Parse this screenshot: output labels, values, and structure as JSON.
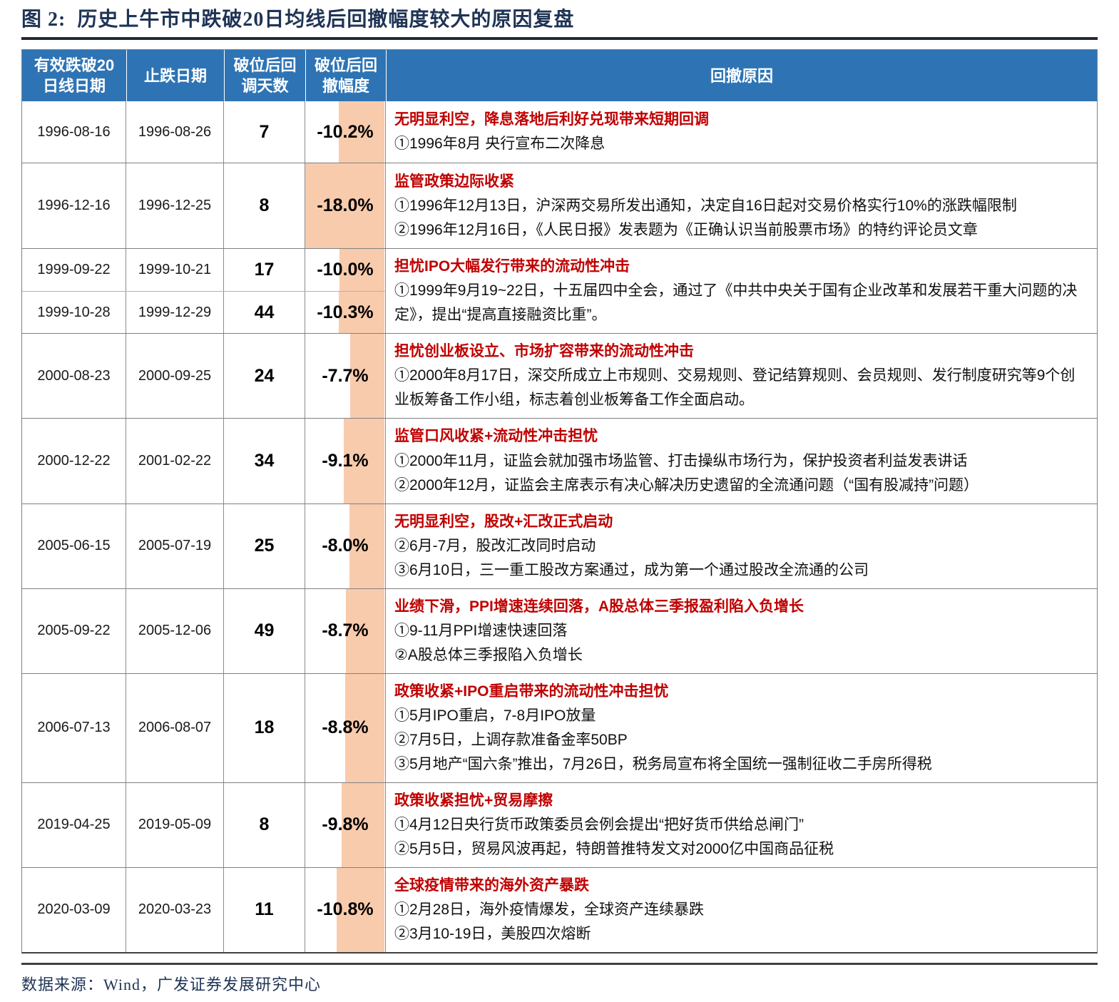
{
  "figure": {
    "title": "图 2:  历史上牛市中跌破20日均线后回撤幅度较大的原因复盘",
    "source": "数据来源：Wind，广发证券发展研究中心"
  },
  "colors": {
    "header_bg": "#2E74B5",
    "bar_fill": "#F8CBAD",
    "reason_title_red": "#C00000",
    "title_navy": "#1F3455"
  },
  "table": {
    "headers": [
      "有效跌破20\n日线日期",
      "止跌日期",
      "破位后回\n调天数",
      "破位后回\n撤幅度",
      "回撤原因"
    ],
    "drawdown_bar_scale_max": "-18.0%",
    "groups": [
      {
        "rows": [
          {
            "break_date": "1996-08-16",
            "stop_date": "1996-08-26",
            "days": "7",
            "drawdown": "-10.2%",
            "bar_width": "57%"
          }
        ],
        "reason_title": "无明显利空，降息落地后利好兑现带来短期回调",
        "details": [
          "①1996年8月 央行宣布二次降息"
        ]
      },
      {
        "rows": [
          {
            "break_date": "1996-12-16",
            "stop_date": "1996-12-25",
            "days": "8",
            "drawdown": "-18.0%",
            "bar_width": "100%"
          }
        ],
        "reason_title": "监管政策边际收紧",
        "details": [
          "①1996年12月13日，沪深两交易所发出通知，决定自16日起对交易价格实行10%的涨跌幅限制",
          "②1996年12月16日，《人民日报》发表题为《正确认识当前股票市场》的特约评论员文章"
        ]
      },
      {
        "rows": [
          {
            "break_date": "1999-09-22",
            "stop_date": "1999-10-21",
            "days": "17",
            "drawdown": "-10.0%",
            "bar_width": "56%"
          },
          {
            "break_date": "1999-10-28",
            "stop_date": "1999-12-29",
            "days": "44",
            "drawdown": "-10.3%",
            "bar_width": "57%"
          }
        ],
        "reason_title": "担忧IPO大幅发行带来的流动性冲击",
        "details": [
          "①1999年9月19~22日，十五届四中全会，通过了《中共中央关于国有企业改革和发展若干重大问题的决定》，提出“提高直接融资比重”。"
        ]
      },
      {
        "rows": [
          {
            "break_date": "2000-08-23",
            "stop_date": "2000-09-25",
            "days": "24",
            "drawdown": "-7.7%",
            "bar_width": "43%"
          }
        ],
        "reason_title": "担忧创业板设立、市场扩容带来的流动性冲击",
        "details": [
          "①2000年8月17日，深交所成立上市规则、交易规则、登记结算规则、会员规则、发行制度研究等9个创业板筹备工作小组，标志着创业板筹备工作全面启动。"
        ]
      },
      {
        "rows": [
          {
            "break_date": "2000-12-22",
            "stop_date": "2001-02-22",
            "days": "34",
            "drawdown": "-9.1%",
            "bar_width": "51%"
          }
        ],
        "reason_title": "监管口风收紧+流动性冲击担忧",
        "details": [
          "①2000年11月，证监会就加强市场监管、打击操纵市场行为，保护投资者利益发表讲话",
          "②2000年12月，证监会主席表示有决心解决历史遗留的全流通问题（“国有股减持”问题）"
        ]
      },
      {
        "rows": [
          {
            "break_date": "2005-06-15",
            "stop_date": "2005-07-19",
            "days": "25",
            "drawdown": "-8.0%",
            "bar_width": "44%"
          }
        ],
        "reason_title": "无明显利空，股改+汇改正式启动",
        "details": [
          "②6月-7月，股改汇改同时启动",
          "③6月10日，三一重工股改方案通过，成为第一个通过股改全流通的公司"
        ]
      },
      {
        "rows": [
          {
            "break_date": "2005-09-22",
            "stop_date": "2005-12-06",
            "days": "49",
            "drawdown": "-8.7%",
            "bar_width": "48%"
          }
        ],
        "reason_title": "业绩下滑，PPI增速连续回落，A股总体三季报盈利陷入负增长",
        "details": [
          "①9-11月PPI增速快速回落",
          "②A股总体三季报陷入负增长"
        ]
      },
      {
        "rows": [
          {
            "break_date": "2006-07-13",
            "stop_date": "2006-08-07",
            "days": "18",
            "drawdown": "-8.8%",
            "bar_width": "49%"
          }
        ],
        "reason_title": "政策收紧+IPO重启带来的流动性冲击担忧",
        "details": [
          "①5月IPO重启，7-8月IPO放量",
          "②7月5日，上调存款准备金率50BP",
          "③5月地产“国六条”推出，7月26日，税务局宣布将全国统一强制征收二手房所得税"
        ]
      },
      {
        "rows": [
          {
            "break_date": "2019-04-25",
            "stop_date": "2019-05-09",
            "days": "8",
            "drawdown": "-9.8%",
            "bar_width": "54%"
          }
        ],
        "reason_title": "政策收紧担忧+贸易摩擦",
        "details": [
          "①4月12日央行货币政策委员会例会提出“把好货币供给总闸门”",
          "②5月5日，贸易风波再起，特朗普推特发文对2000亿中国商品征税"
        ]
      },
      {
        "rows": [
          {
            "break_date": "2020-03-09",
            "stop_date": "2020-03-23",
            "days": "11",
            "drawdown": "-10.8%",
            "bar_width": "60%"
          }
        ],
        "reason_title": "全球疫情带来的海外资产暴跌",
        "details": [
          "①2月28日，海外疫情爆发，全球资产连续暴跌",
          "②3月10-19日，美股四次熔断"
        ]
      }
    ]
  }
}
